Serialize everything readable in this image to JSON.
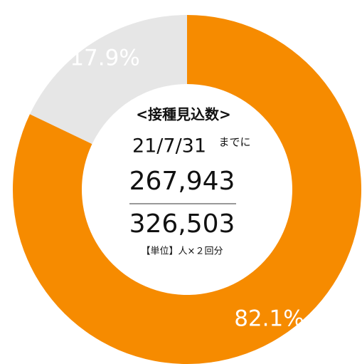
{
  "chart_data": {
    "type": "pie",
    "donut": true,
    "values": [
      82.1,
      17.9
    ],
    "value_labels": [
      "82.1%",
      "17.9%"
    ],
    "colors": [
      "#f68b00",
      "#e6e6e6"
    ],
    "center_text": {
      "heading": "<接種見込数>",
      "date": "21/7/31",
      "date_suffix": "までに",
      "numerator": "267,943",
      "denominator": "326,503",
      "unit": "【単位】人×２回分"
    }
  }
}
